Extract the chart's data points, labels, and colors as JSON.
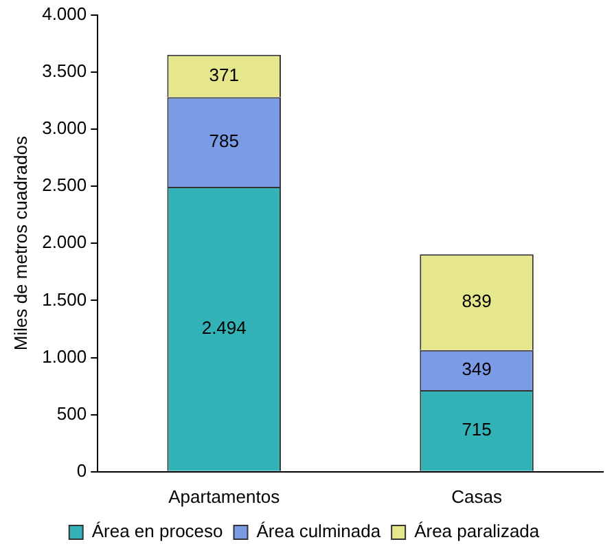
{
  "chart_data": {
    "type": "bar",
    "stacked": true,
    "ylabel": "Miles de metros cuadrados",
    "categories": [
      "Apartamentos",
      "Casas"
    ],
    "series": [
      {
        "name": "Área en proceso",
        "color": "#33b3b8",
        "values": [
          2494,
          715
        ],
        "value_labels": [
          "2.494",
          "715"
        ]
      },
      {
        "name": "Área culminada",
        "color": "#7b9be6",
        "values": [
          785,
          349
        ],
        "value_labels": [
          "785",
          "349"
        ]
      },
      {
        "name": "Área paralizada",
        "color": "#e6e68c",
        "values": [
          371,
          839
        ],
        "value_labels": [
          "371",
          "839"
        ]
      }
    ],
    "ylim": [
      0,
      4000
    ],
    "yticks": [
      0,
      {
        "value": 500,
        "label": "500"
      },
      {
        "value": 1000,
        "label": "1.000"
      },
      {
        "value": 1500,
        "label": "1.500"
      },
      {
        "value": 2000,
        "label": "2.000"
      },
      {
        "value": 2500,
        "label": "2.500"
      },
      {
        "value": 3000,
        "label": "3.000"
      },
      {
        "value": 3500,
        "label": "3.500"
      },
      {
        "value": 4000,
        "label": "4.000"
      }
    ],
    "grid": false,
    "legend": "bottom"
  }
}
